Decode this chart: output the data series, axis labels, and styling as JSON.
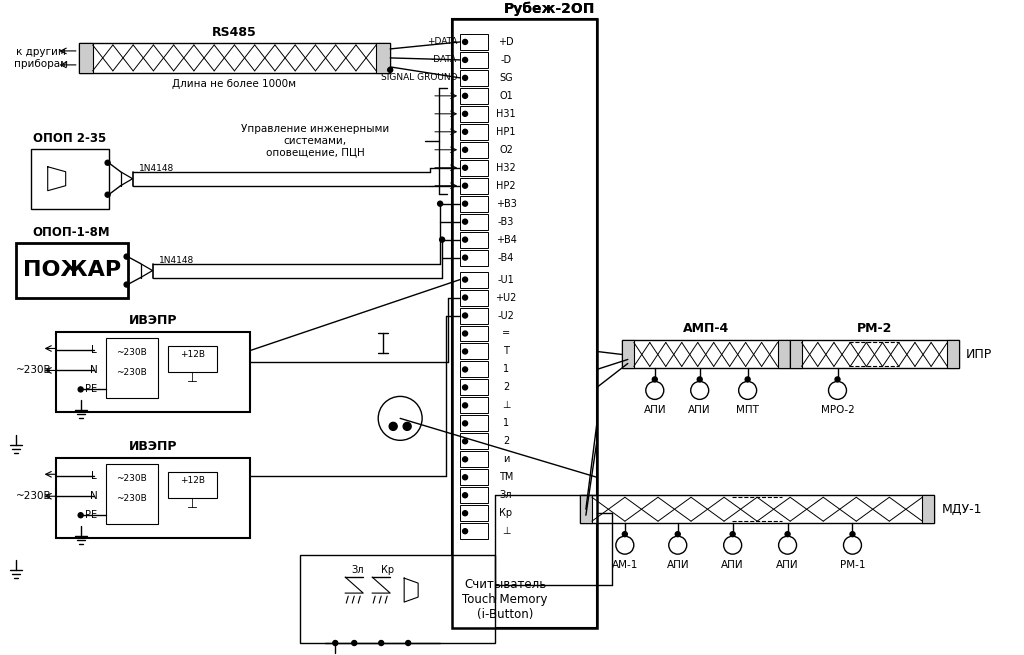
{
  "bg_color": "#ffffff",
  "rubezh_label": "Рубеж-2ОП",
  "rs485_label": "RS485",
  "length_label": "Длина не более 1000м",
  "k_drugim_label": "к другим\nприборам",
  "opop235_label": "ОПОП 2-35",
  "opop18m_label": "ОПОП-1-8М",
  "pozhar_label": "ПОЖАР",
  "ivaepr_label": "ИВЭПР",
  "v230_label": "~230В",
  "plus12v_label": "+12В",
  "amp4_label": "АМП-4",
  "rm2_label": "РМ-2",
  "ipr_label": "ИПР",
  "consider_label": "Считыватель\nTouch Memory\n(i-Button)",
  "upravlenie_label": "Управление инженерными\nсистемами,\nоповещение, ПЦН",
  "diode_label": "1N4148",
  "mdu1_label": "МДУ-1",
  "terminals1": [
    "+D",
    "-D",
    "SG",
    "O1",
    "Н31",
    "НР1",
    "O2",
    "Н32",
    "НР2",
    "+В3",
    "-В3",
    "+В4",
    "-В4"
  ],
  "terminals2": [
    "-U1",
    "+U2",
    "-U2",
    "=",
    "T",
    "1",
    "2",
    "⊥",
    "1",
    "2",
    "и",
    "ТМ",
    "Зл",
    "Кр",
    "⊥"
  ],
  "dev_top": [
    [
      655,
      390,
      "АПИ"
    ],
    [
      700,
      390,
      "АПИ"
    ],
    [
      748,
      390,
      "МПТ"
    ],
    [
      838,
      390,
      "МРО-2"
    ]
  ],
  "dev_bot": [
    [
      625,
      545,
      "АМ-1"
    ],
    [
      678,
      545,
      "АПИ"
    ],
    [
      733,
      545,
      "АПИ"
    ],
    [
      788,
      545,
      "АПИ"
    ],
    [
      853,
      545,
      "РМ-1"
    ]
  ]
}
